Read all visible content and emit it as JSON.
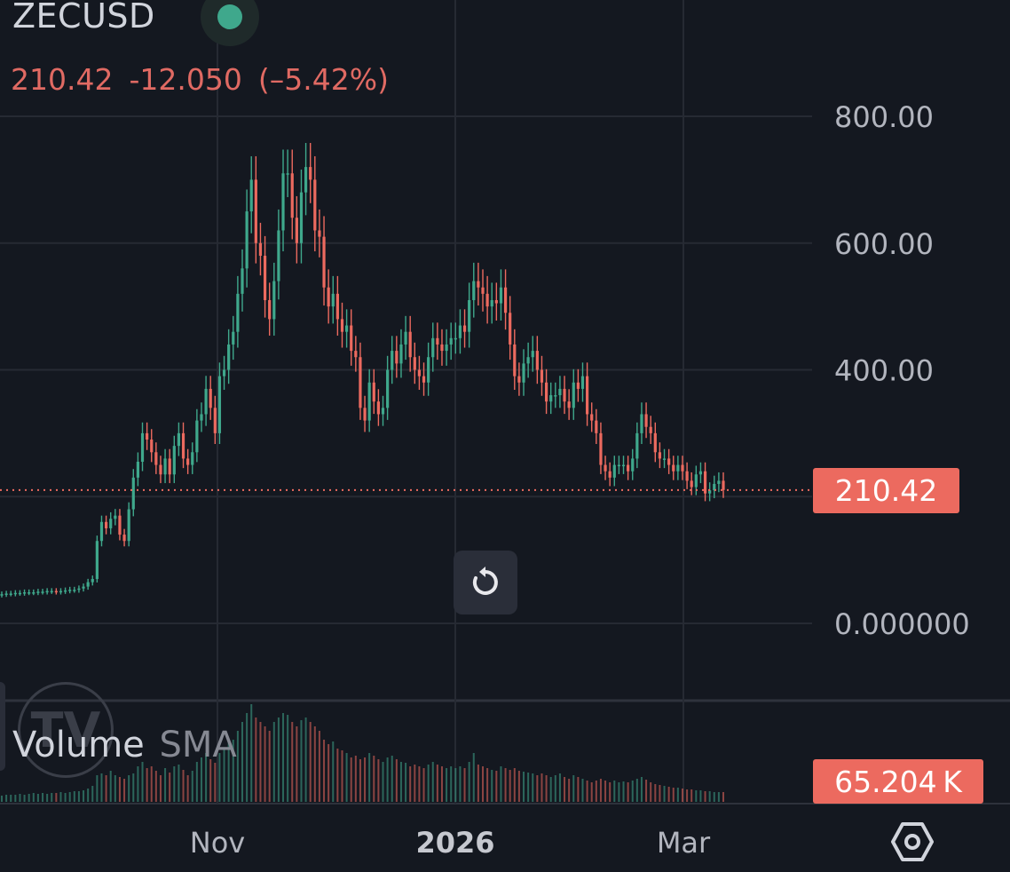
{
  "header": {
    "symbol": "ZECUSD",
    "last_price": "210.42",
    "change": "-12.050",
    "change_pct": "(–5.42%)",
    "status_color": "#3fa88c"
  },
  "price_tag": "210.42",
  "volume_tag": "65.204 K",
  "volume_indicator": {
    "name": "Volume",
    "ma": "SMA"
  },
  "icons": {
    "reset": "reset-icon",
    "settings": "settings-icon",
    "status": "status-dot-icon"
  },
  "colors": {
    "up": "#3fa88c",
    "down": "#ec6a5f",
    "background": "#141820",
    "grid": "#262a33",
    "last_price": "#ec6a5f"
  },
  "chart_data": {
    "type": "candlestick",
    "symbol": "ZECUSD",
    "y_ticks": [
      "800.00",
      "600.00",
      "400.00",
      "0.000000"
    ],
    "y_tick_values": [
      800,
      600,
      400,
      0
    ],
    "ylim": [
      -120,
      1000
    ],
    "x_ticks": [
      "Nov",
      "2026",
      "Mar"
    ],
    "last_value": 210.42,
    "close_series": [
      46,
      47,
      47,
      48,
      48,
      49,
      49,
      49,
      50,
      50,
      51,
      51,
      50,
      51,
      52,
      53,
      53,
      55,
      58,
      65,
      70,
      130,
      160,
      150,
      165,
      170,
      140,
      130,
      180,
      230,
      255,
      300,
      290,
      270,
      250,
      235,
      260,
      235,
      280,
      300,
      260,
      250,
      270,
      320,
      330,
      370,
      340,
      300,
      390,
      400,
      440,
      460,
      520,
      560,
      650,
      700,
      600,
      580,
      510,
      480,
      540,
      620,
      710,
      710,
      640,
      600,
      680,
      720,
      700,
      620,
      610,
      530,
      500,
      520,
      480,
      460,
      470,
      430,
      420,
      340,
      320,
      380,
      350,
      330,
      340,
      400,
      430,
      410,
      440,
      460,
      420,
      400,
      390,
      380,
      420,
      450,
      440,
      430,
      440,
      450,
      450,
      470,
      460,
      510,
      540,
      530,
      520,
      500,
      510,
      505,
      530,
      490,
      440,
      390,
      380,
      410,
      420,
      430,
      400,
      380,
      350,
      360,
      360,
      370,
      350,
      340,
      380,
      370,
      390,
      330,
      320,
      300,
      250,
      240,
      230,
      250,
      250,
      250,
      240,
      260,
      300,
      330,
      310,
      300,
      270,
      260,
      260,
      250,
      240,
      250,
      240,
      225,
      215,
      235,
      240,
      205,
      210,
      220,
      225,
      210.42
    ],
    "volume": [
      7,
      8,
      8,
      8,
      9,
      8,
      9,
      10,
      9,
      10,
      9,
      10,
      10,
      11,
      10,
      11,
      12,
      12,
      13,
      15,
      18,
      30,
      32,
      30,
      35,
      30,
      28,
      26,
      30,
      32,
      40,
      45,
      38,
      40,
      35,
      30,
      38,
      33,
      40,
      42,
      36,
      30,
      35,
      45,
      50,
      55,
      48,
      44,
      55,
      60,
      68,
      70,
      80,
      90,
      100,
      110,
      95,
      90,
      85,
      80,
      90,
      95,
      100,
      98,
      90,
      85,
      92,
      95,
      90,
      85,
      80,
      70,
      65,
      68,
      60,
      58,
      55,
      50,
      52,
      48,
      50,
      55,
      52,
      48,
      45,
      50,
      52,
      48,
      45,
      44,
      40,
      42,
      40,
      38,
      42,
      45,
      42,
      40,
      38,
      40,
      38,
      40,
      38,
      45,
      55,
      42,
      40,
      38,
      36,
      35,
      40,
      38,
      36,
      38,
      35,
      34,
      33,
      32,
      30,
      32,
      30,
      28,
      30,
      32,
      28,
      26,
      30,
      28,
      26,
      24,
      22,
      24,
      26,
      24,
      22,
      24,
      22,
      23,
      22,
      24,
      26,
      28,
      25,
      22,
      20,
      19,
      18,
      17,
      16,
      16,
      15,
      14,
      14,
      13,
      13,
      12,
      12,
      11,
      11,
      11
    ]
  }
}
